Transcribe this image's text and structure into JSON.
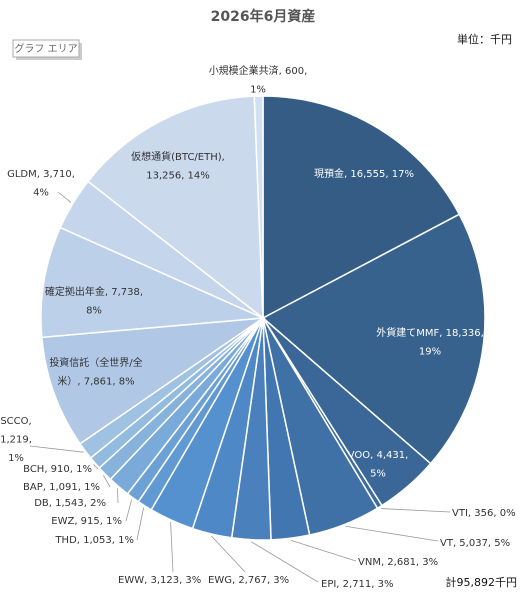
{
  "chart_data": {
    "type": "pie",
    "title": "2026年6月資産",
    "unit_text": "単位：千円",
    "area_label": "グラフ エリア",
    "total_text": "計95,892千円",
    "values": [
      16555,
      18336,
      4431,
      356,
      5037,
      2681,
      2711,
      2767,
      3123,
      1053,
      915,
      1543,
      1091,
      910,
      1219,
      7861,
      7738,
      3710,
      13256,
      600
    ],
    "value_labels": [
      "現預金, 16,555, 17%",
      "外貨建てMMF, 18,336, 19%",
      "VOO, 4,431, 5%",
      "VTI, 356, 0%",
      "VT, 5,037, 5%",
      "VNM, 2,681, 3%",
      "EPI, 2,711, 3%",
      "EWG, 2,767, 3%",
      "EWW, 3,123, 3%",
      "THD, 1,053, 1%",
      "EWZ, 915, 1%",
      "DB, 1,543, 2%",
      "BAP, 1,091, 1%",
      "BCH, 910, 1%",
      "SCCO, 1,219, 1%",
      "投資信託（全世界/全米）, 7,861, 8%",
      "確定拠出年金, 7,738, 8%",
      "GLDM, 3,710, 4%",
      "仮想通貨(BTC/ETH), 13,256, 14%",
      "小規模企業共済, 600, 1%"
    ],
    "colors": [
      "#345c85",
      "#37628e",
      "#3a6797",
      "#3c6c9f",
      "#3f71a7",
      "#4276b0",
      "#4a80bb",
      "#4f88c6",
      "#5591cf",
      "#6199d3",
      "#6ca1d6",
      "#79aad9",
      "#86b2dc",
      "#93badf",
      "#9fc1e2",
      "#b0c8e6",
      "#bdd0ea",
      "#c5d6ec",
      "#cbd9ed",
      "#d3e0f0"
    ]
  }
}
